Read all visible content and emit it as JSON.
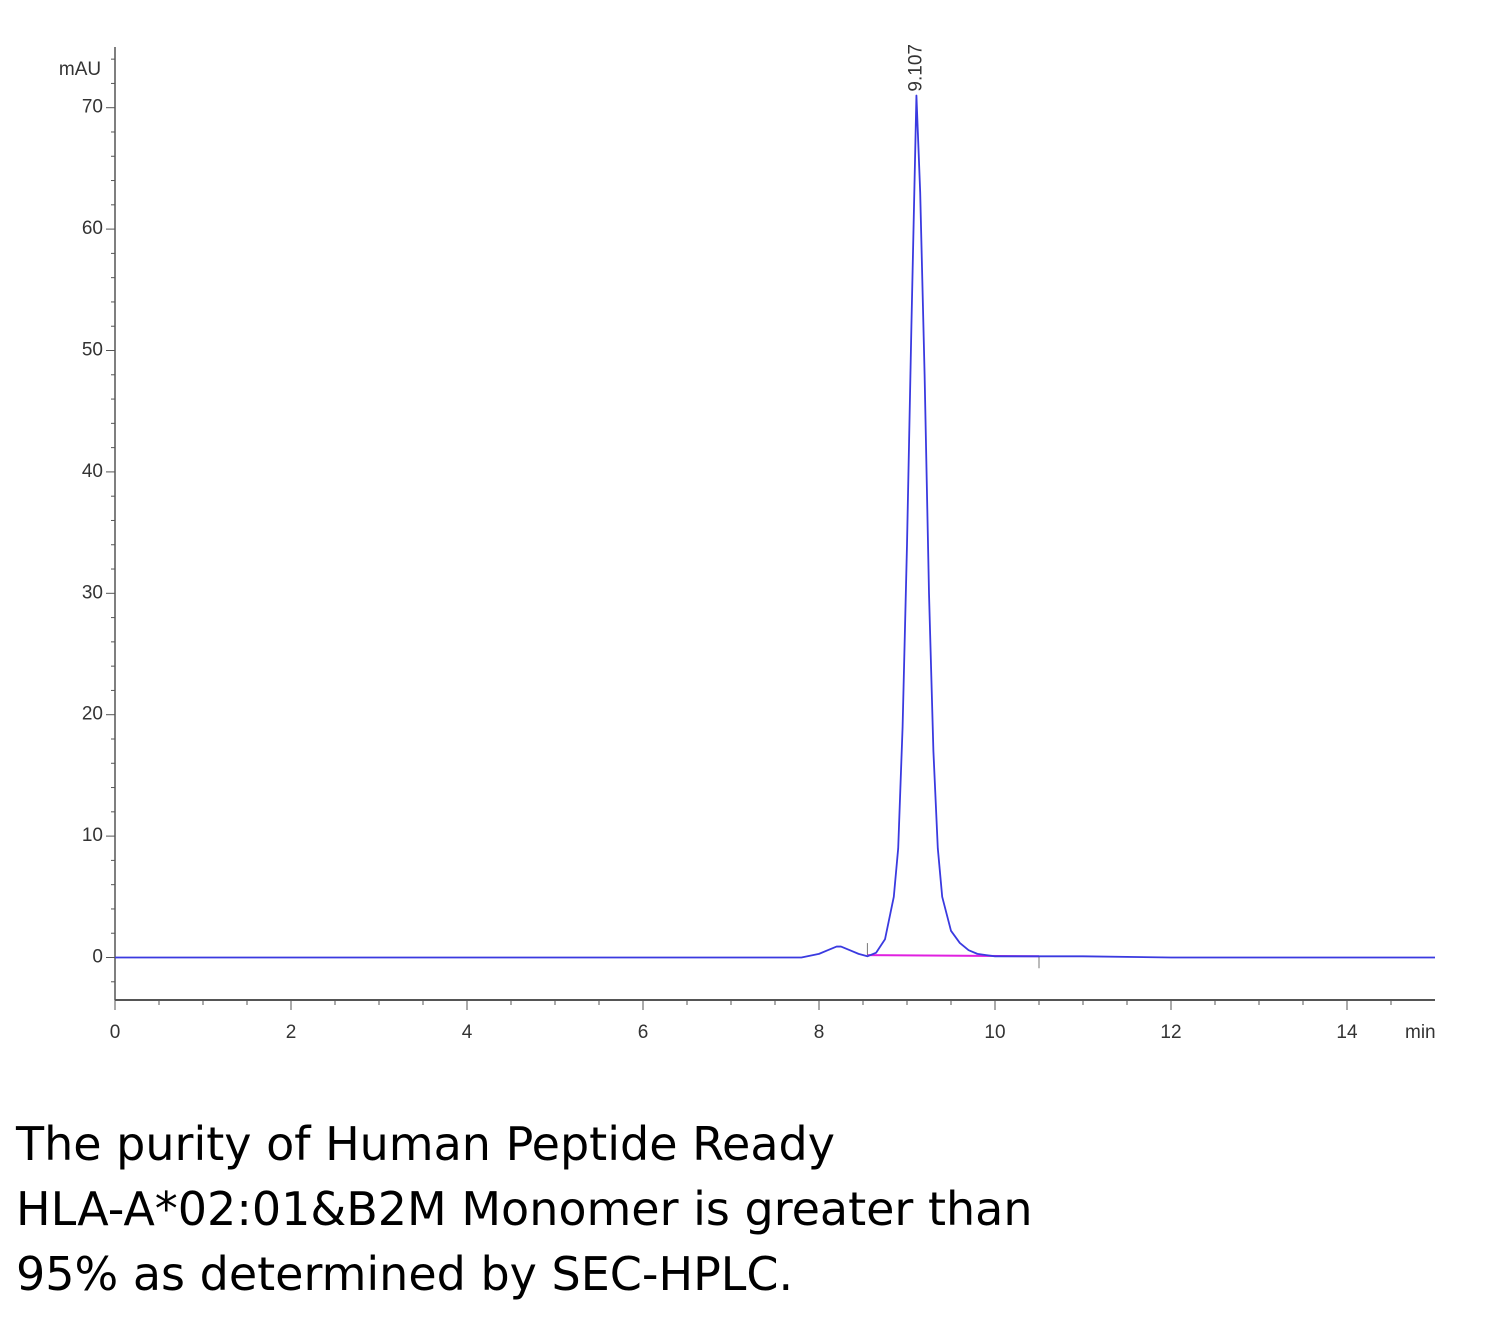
{
  "chart_data": {
    "type": "line",
    "ylabel": "mAU",
    "xlabel": "min",
    "x": [
      0,
      2,
      4,
      6,
      7.8,
      8.0,
      8.1,
      8.2,
      8.25,
      8.35,
      8.45,
      8.55,
      8.65,
      8.75,
      8.85,
      8.9,
      8.95,
      9.0,
      9.05,
      9.107,
      9.15,
      9.2,
      9.25,
      9.3,
      9.35,
      9.4,
      9.5,
      9.6,
      9.7,
      9.8,
      9.9,
      10.0,
      10.5,
      11,
      12,
      13,
      14,
      15
    ],
    "series": [
      {
        "color": "#3a3ae0",
        "values": [
          0,
          0,
          0,
          0,
          0,
          0.3,
          0.6,
          0.9,
          0.9,
          0.6,
          0.3,
          0.1,
          0.4,
          1.5,
          5,
          9,
          19,
          34,
          52,
          71,
          63,
          48,
          30,
          17,
          9,
          5,
          2.2,
          1.2,
          0.6,
          0.3,
          0.2,
          0.1,
          0.1,
          0.1,
          0,
          0,
          0,
          0
        ]
      }
    ],
    "integration_baseline": {
      "x": [
        8.55,
        10.5
      ],
      "values": [
        0.2,
        0.1
      ],
      "color": "#e020e0"
    },
    "peak_label": {
      "x": 9.107,
      "value": 71,
      "label": "9.107"
    },
    "xlim": [
      0,
      15
    ],
    "ylim": [
      -3.5,
      75
    ],
    "xticks": [
      0,
      2,
      4,
      6,
      8,
      10,
      12,
      14
    ],
    "yticks": [
      0,
      10,
      20,
      30,
      40,
      50,
      60,
      70
    ],
    "xminorticks": [
      0.5,
      1,
      1.5,
      2.5,
      3,
      3.5,
      4.5,
      5,
      5.5,
      6.5,
      7,
      7.5,
      8.5,
      9,
      9.5,
      10.5,
      11,
      11.5,
      12.5,
      13,
      13.5,
      14.5
    ],
    "yminorticks": [
      -2,
      2,
      4,
      6,
      8,
      12,
      14,
      16,
      18,
      22,
      24,
      26,
      28,
      32,
      34,
      36,
      38,
      42,
      44,
      46,
      48,
      52,
      54,
      56,
      58,
      62,
      64,
      66,
      68,
      72,
      74
    ],
    "grid": false
  },
  "caption": {
    "lines": [
      "The purity of Human Peptide Ready",
      "HLA-A*02:01&B2M Monomer is greater than",
      "95% as determined by SEC-HPLC."
    ]
  }
}
